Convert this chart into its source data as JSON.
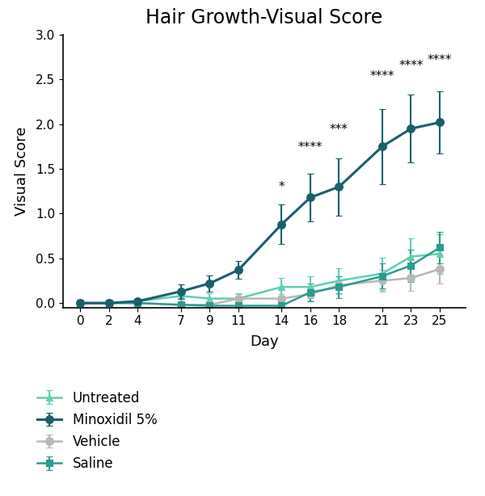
{
  "title": "Hair Growth-Visual Score",
  "xlabel": "Day",
  "ylabel": "Visual Score",
  "ylim": [
    -0.05,
    3.0
  ],
  "yticks": [
    0.0,
    0.5,
    1.0,
    1.5,
    2.0,
    2.5,
    3.0
  ],
  "days": [
    0,
    2,
    4,
    7,
    9,
    11,
    14,
    16,
    18,
    21,
    23,
    25
  ],
  "series": {
    "Untreated": {
      "color": "#5ecfb1",
      "marker": "^",
      "markersize": 6,
      "linewidth": 1.8,
      "values": [
        0.0,
        0.0,
        0.02,
        0.08,
        0.05,
        0.05,
        0.18,
        0.18,
        0.25,
        0.33,
        0.52,
        0.55
      ],
      "errors": [
        0.01,
        0.01,
        0.02,
        0.07,
        0.06,
        0.06,
        0.1,
        0.12,
        0.14,
        0.18,
        0.2,
        0.22
      ]
    },
    "Minoxidil 5%": {
      "color": "#1a5f6a",
      "marker": "o",
      "markersize": 7,
      "linewidth": 2.2,
      "values": [
        0.0,
        0.0,
        0.02,
        0.13,
        0.22,
        0.37,
        0.88,
        1.18,
        1.3,
        1.75,
        1.95,
        2.02
      ],
      "errors": [
        0.01,
        0.01,
        0.02,
        0.08,
        0.09,
        0.1,
        0.22,
        0.27,
        0.32,
        0.42,
        0.38,
        0.35
      ]
    },
    "Vehicle": {
      "color": "#b8b8b8",
      "marker": "o",
      "markersize": 7,
      "linewidth": 1.8,
      "values": [
        0.0,
        0.0,
        0.0,
        -0.02,
        -0.02,
        0.05,
        0.05,
        0.1,
        0.2,
        0.25,
        0.28,
        0.38
      ],
      "errors": [
        0.01,
        0.01,
        0.01,
        0.03,
        0.04,
        0.05,
        0.05,
        0.07,
        0.1,
        0.12,
        0.14,
        0.16
      ]
    },
    "Saline": {
      "color": "#2a9d8f",
      "marker": "s",
      "markersize": 6,
      "linewidth": 1.8,
      "values": [
        0.0,
        0.0,
        0.0,
        -0.02,
        -0.03,
        -0.03,
        -0.03,
        0.12,
        0.18,
        0.3,
        0.42,
        0.62
      ],
      "errors": [
        0.01,
        0.01,
        0.01,
        0.03,
        0.04,
        0.04,
        0.06,
        0.1,
        0.12,
        0.14,
        0.18,
        0.18
      ]
    }
  },
  "significance": {
    "14": "*",
    "16": "****",
    "18": "***",
    "21": "****",
    "23": "****",
    "25": "****"
  },
  "sig_y_offsets": {
    "14": 0.13,
    "16": 0.22,
    "18": 0.25,
    "21": 0.3,
    "23": 0.25,
    "25": 0.28
  },
  "background_color": "#ffffff",
  "title_fontsize": 17,
  "label_fontsize": 13,
  "tick_fontsize": 11,
  "legend_fontsize": 12
}
